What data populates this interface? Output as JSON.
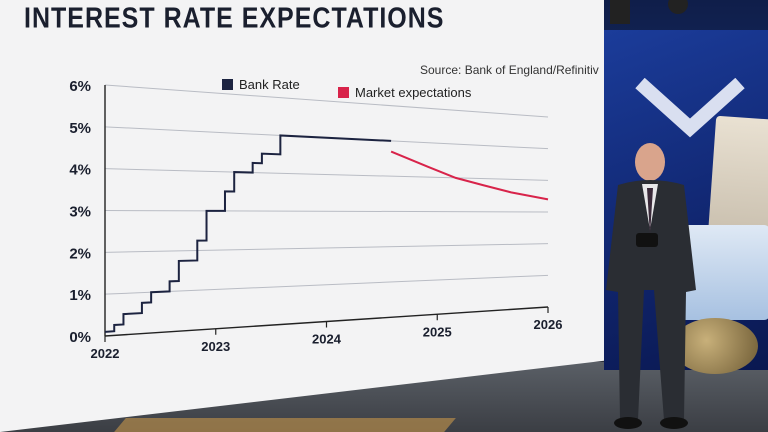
{
  "title": "INTEREST RATE EXPECTATIONS",
  "source": "Source:  Bank of England/Refinitiv",
  "colors": {
    "bank_rate": "#1c2340",
    "market": "#d8234a",
    "panel": "#f3f3f4"
  },
  "chart_data": {
    "type": "line",
    "ylim": [
      0,
      6
    ],
    "yticks": [
      "0%",
      "1%",
      "2%",
      "3%",
      "4%",
      "5%",
      "6%"
    ],
    "xticks": [
      "2022",
      "2023",
      "2024",
      "2025",
      "2026"
    ],
    "legend": [
      "Bank Rate",
      "Market expectations"
    ],
    "grid": true,
    "series": [
      {
        "name": "Bank Rate",
        "style": "step",
        "x": [
          "2022-01",
          "2022-02",
          "2022-03",
          "2022-05",
          "2022-06",
          "2022-08",
          "2022-09",
          "2022-11",
          "2022-12",
          "2023-02",
          "2023-03",
          "2023-05",
          "2023-06",
          "2023-08",
          "2024-08"
        ],
        "y": [
          0.1,
          0.25,
          0.5,
          0.75,
          1.0,
          1.25,
          1.75,
          2.25,
          3.0,
          3.5,
          4.0,
          4.25,
          4.5,
          5.0,
          5.0
        ]
      },
      {
        "name": "Market expectations",
        "style": "line",
        "x": [
          "2024-08",
          "2024-12",
          "2025-03",
          "2025-06",
          "2025-09",
          "2025-12",
          "2026-01"
        ],
        "y": [
          4.7,
          4.3,
          4.0,
          3.8,
          3.6,
          3.45,
          3.4
        ]
      }
    ]
  }
}
